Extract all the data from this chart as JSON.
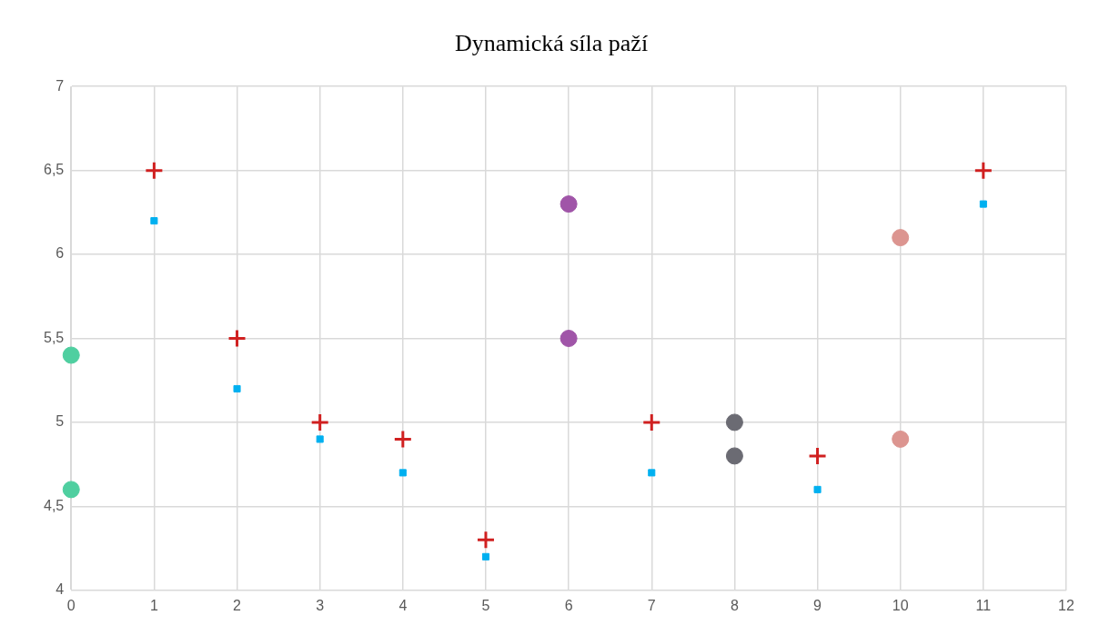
{
  "chart_data": {
    "type": "scatter",
    "title": "Dynamická síla paží",
    "xlim": [
      0,
      12
    ],
    "xticks": [
      0,
      1,
      2,
      3,
      4,
      5,
      6,
      7,
      8,
      9,
      10,
      11,
      12
    ],
    "ylim": [
      4,
      7
    ],
    "yticks": [
      4,
      {
        "value": 4.5,
        "label": "4,5"
      },
      5,
      {
        "value": 5.5,
        "label": "5,5"
      },
      6,
      {
        "value": 6.5,
        "label": "6,5"
      },
      7
    ],
    "grid": true,
    "legend": false,
    "series": [
      {
        "color": "#d02020",
        "marker": "cross",
        "x": [
          1,
          2,
          3,
          4,
          5,
          7,
          9,
          11
        ],
        "values": [
          6.5,
          5.5,
          5.0,
          4.9,
          4.3,
          5.0,
          4.8,
          6.5
        ]
      },
      {
        "color": "#00b0f0",
        "marker": "square",
        "x": [
          1,
          2,
          3,
          4,
          5,
          7,
          9,
          11
        ],
        "values": [
          6.2,
          5.2,
          4.9,
          4.7,
          4.2,
          4.7,
          4.6,
          6.3
        ]
      },
      {
        "color": "#4fcfa0",
        "marker": "circle",
        "x": [
          0,
          0
        ],
        "values": [
          5.4,
          4.6
        ]
      },
      {
        "color": "#a055a8",
        "marker": "circle",
        "x": [
          6,
          6
        ],
        "values": [
          6.3,
          5.5
        ]
      },
      {
        "color": "#6b6b73",
        "marker": "circle",
        "x": [
          8,
          8
        ],
        "values": [
          5.0,
          4.8
        ]
      },
      {
        "color": "#dc9590",
        "marker": "circle",
        "x": [
          10,
          10
        ],
        "values": [
          6.1,
          4.9
        ]
      }
    ]
  }
}
